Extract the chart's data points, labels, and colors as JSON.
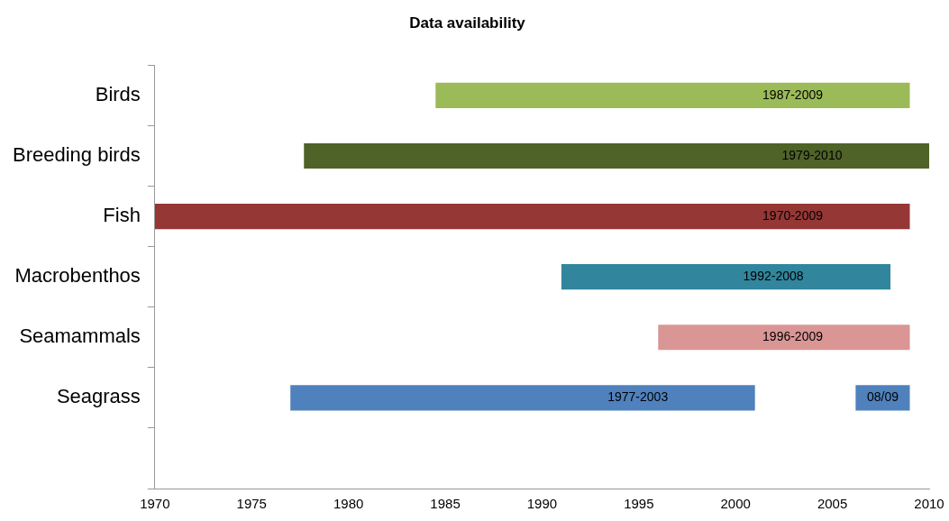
{
  "chart_data": {
    "type": "bar",
    "orientation": "horizontal",
    "title": "Data availability",
    "categories": [
      "Birds",
      "Breeding birds",
      "Fish",
      "Macrobenthos",
      "Seamammals",
      "Seagrass",
      null
    ],
    "series": [
      {
        "colors": [
          "#9bbb59",
          "#4f6228",
          "#953735",
          "#31859c",
          "#d99694",
          "#4f81bd",
          null
        ],
        "base": [
          1984.5,
          1977.7,
          1970,
          1991,
          1996,
          1977,
          null
        ],
        "values": [
          24.5,
          32.3,
          39,
          17,
          13,
          24,
          null
        ],
        "value_labels": [
          "1987-2009",
          "1979-2010",
          "1970-2009",
          "1992-2008",
          "1996-2009",
          "1977-2003",
          null
        ]
      },
      {
        "colors": [
          null,
          null,
          null,
          null,
          null,
          "#4f81bd",
          null
        ],
        "base": [
          null,
          null,
          null,
          null,
          null,
          2006.2,
          null
        ],
        "values": [
          null,
          null,
          null,
          null,
          null,
          2.8,
          null
        ],
        "value_labels": [
          null,
          null,
          null,
          null,
          null,
          "08/09",
          null
        ]
      }
    ],
    "xlim": [
      1970,
      2010
    ],
    "xticks": [
      1970,
      1975,
      1980,
      1985,
      1990,
      1995,
      2000,
      2005,
      2010
    ],
    "grid": false,
    "legend": false
  }
}
